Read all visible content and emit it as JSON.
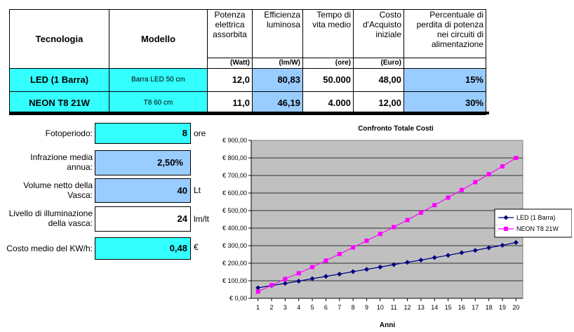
{
  "table": {
    "headers": {
      "tech": "Tecnologia",
      "model": "Modello",
      "power": [
        "Potenza",
        "elettrica",
        "assorbita"
      ],
      "efficiency": [
        "Efficienza",
        "luminosa"
      ],
      "life": [
        "Tempo di",
        "vita medio"
      ],
      "cost": [
        "Costo",
        "d'Acquisto",
        "iniziale"
      ],
      "loss": [
        "Percentuale di",
        "perdita di potenza",
        "nei circuiti di",
        "alimentazione"
      ]
    },
    "units": {
      "power": "(Watt)",
      "efficiency": "(lm/W)",
      "life": "(ore)",
      "cost": "(Euro)"
    },
    "rows": [
      {
        "tech": "LED (1 Barra)",
        "model": "Barra LED 50 cm",
        "power": "12,0",
        "efficiency": "80,83",
        "life": "50.000",
        "cost": "48,00",
        "loss": "15%"
      },
      {
        "tech": "NEON T8 21W",
        "model": "T8 60 cm",
        "power": "11,0",
        "efficiency": "46,19",
        "life": "4.000",
        "cost": "12,00",
        "loss": "30%"
      }
    ]
  },
  "params": {
    "photoperiod": {
      "label": [
        "Fotoperiodo:"
      ],
      "value": "8",
      "unit": "ore"
    },
    "inflation": {
      "label": [
        "Infrazione media",
        "annua:"
      ],
      "value": "2,50%",
      "unit": ""
    },
    "volume": {
      "label": [
        "Volume netto della",
        "Vasca:"
      ],
      "value": "40",
      "unit": "Lt"
    },
    "lighting": {
      "label": [
        "Livello di illuminazione",
        "della vasca:"
      ],
      "value": "24",
      "unit": "lm/lt"
    },
    "kwh": {
      "label": [
        "Costo medio del KW/h:"
      ],
      "value": "0,48",
      "unit": "€"
    }
  },
  "colors": {
    "cyan": "#33ffff",
    "blue": "#99ccff",
    "plot_bg": "#c0c0c0",
    "led": "#000080",
    "neon": "#ff00ff"
  },
  "chart_data": {
    "type": "line",
    "title": "Confronto Totale Costi",
    "xlabel": "Anni",
    "ylabel": "",
    "x": [
      1,
      2,
      3,
      4,
      5,
      6,
      7,
      8,
      9,
      10,
      11,
      12,
      13,
      14,
      15,
      16,
      17,
      18,
      19,
      20
    ],
    "ylim": [
      0,
      900
    ],
    "yticks": [
      0,
      100,
      200,
      300,
      400,
      500,
      600,
      700,
      800,
      900
    ],
    "ytick_labels": [
      "€ 0,00",
      "€ 100,00",
      "€ 200,00",
      "€ 300,00",
      "€ 400,00",
      "€ 500,00",
      "€ 600,00",
      "€ 700,00",
      "€ 800,00",
      "€ 900,00"
    ],
    "grid": true,
    "legend": "right",
    "series": [
      {
        "name": "LED (1 Barra)",
        "color": "#000080",
        "marker": "diamond",
        "values": [
          60,
          73,
          85,
          98,
          112,
          125,
          138,
          152,
          165,
          178,
          192,
          205,
          218,
          232,
          245,
          260,
          273,
          288,
          302,
          318
        ]
      },
      {
        "name": "NEON T8 21W",
        "color": "#ff00ff",
        "marker": "square",
        "values": [
          38,
          75,
          110,
          143,
          178,
          215,
          252,
          290,
          328,
          367,
          406,
          446,
          488,
          531,
          574,
          617,
          662,
          707,
          752,
          800
        ]
      }
    ]
  }
}
